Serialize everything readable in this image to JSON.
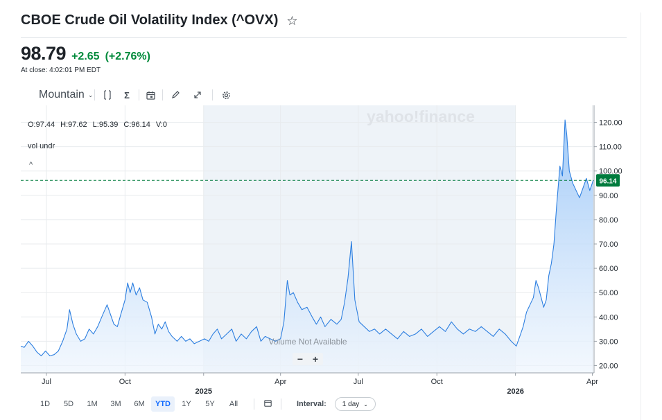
{
  "page": {
    "title": "CBOE Crude Oil Volatility Index (^OVX)",
    "price": "98.79",
    "change": "+2.65",
    "change_pct": "(+2.76%)",
    "close_note": "At close: 4:02:01 PM EDT",
    "star_icon": "star-outline-icon"
  },
  "toolbar": {
    "chart_type": "Mountain",
    "icons": [
      "chevron-down-icon",
      "compare-icon",
      "sigma-icon",
      "calendar-event-icon",
      "pencil-icon",
      "expand-icon",
      "gear-icon"
    ]
  },
  "ohlc": {
    "o": "O:97.44",
    "h": "H:97.62",
    "l": "L:95.39",
    "c": "C:96.14",
    "v": "V:0"
  },
  "indicator_label": "vol undr",
  "volume_note": "Volume Not Available",
  "watermark": "yahoo!finance",
  "zoom": {
    "minus": "−",
    "plus": "+"
  },
  "ranges": [
    "1D",
    "5D",
    "1M",
    "3M",
    "6M",
    "YTD",
    "1Y",
    "5Y",
    "All"
  ],
  "active_range": "YTD",
  "interval": {
    "label": "Interval:",
    "value": "1 day"
  },
  "colors": {
    "line": "#2d7fe0",
    "fill_top": "#9cc7f7",
    "fill_bottom": "#eef5fd",
    "up": "#008a3b",
    "shade": "#eef3f8",
    "price_tag": "#007b3d"
  },
  "chart_data": {
    "type": "area",
    "title": "CBOE Crude Oil Volatility Index (^OVX)",
    "ylim": [
      17,
      127
    ],
    "y_ticks": [
      20,
      30,
      40,
      50,
      60,
      70,
      80,
      90,
      100,
      110,
      120
    ],
    "y_tick_labels": [
      "20.00",
      "30.00",
      "40.00",
      "50.00",
      "60.00",
      "70.00",
      "80.00",
      "90.00",
      "100.00",
      "110.00",
      "120.00"
    ],
    "x_axis": {
      "start": "2024-06-01",
      "end": "2026-04-03",
      "ticks": [
        {
          "date": "2024-07-01",
          "label": "Jul",
          "year": false
        },
        {
          "date": "2024-10-01",
          "label": "Oct",
          "year": false
        },
        {
          "date": "2025-01-01",
          "label": "2025",
          "year": true
        },
        {
          "date": "2025-04-01",
          "label": "Apr",
          "year": false
        },
        {
          "date": "2025-07-01",
          "label": "Jul",
          "year": false
        },
        {
          "date": "2025-10-01",
          "label": "Oct",
          "year": false
        },
        {
          "date": "2026-01-01",
          "label": "2026",
          "year": true
        },
        {
          "date": "2026-04-01",
          "label": "Apr",
          "year": false
        }
      ]
    },
    "highlight_range": [
      "2025-01-01",
      "2026-01-01"
    ],
    "current_value": 96.14,
    "current_label": "96.14",
    "series": [
      {
        "name": "^OVX",
        "points": [
          [
            "2024-06-01",
            28
          ],
          [
            "2024-06-05",
            27.5
          ],
          [
            "2024-06-10",
            30
          ],
          [
            "2024-06-15",
            28
          ],
          [
            "2024-06-20",
            25.5
          ],
          [
            "2024-06-25",
            24
          ],
          [
            "2024-06-30",
            26
          ],
          [
            "2024-07-05",
            24
          ],
          [
            "2024-07-10",
            24.5
          ],
          [
            "2024-07-15",
            26
          ],
          [
            "2024-07-20",
            30
          ],
          [
            "2024-07-25",
            35
          ],
          [
            "2024-07-28",
            43
          ],
          [
            "2024-08-01",
            37
          ],
          [
            "2024-08-05",
            33
          ],
          [
            "2024-08-10",
            30
          ],
          [
            "2024-08-15",
            31
          ],
          [
            "2024-08-20",
            35
          ],
          [
            "2024-08-25",
            33
          ],
          [
            "2024-08-30",
            36
          ],
          [
            "2024-09-05",
            41
          ],
          [
            "2024-09-10",
            45
          ],
          [
            "2024-09-13",
            42
          ],
          [
            "2024-09-18",
            37
          ],
          [
            "2024-09-22",
            36
          ],
          [
            "2024-09-26",
            41
          ],
          [
            "2024-10-01",
            47
          ],
          [
            "2024-10-04",
            54
          ],
          [
            "2024-10-07",
            50
          ],
          [
            "2024-10-10",
            54
          ],
          [
            "2024-10-14",
            49
          ],
          [
            "2024-10-18",
            52
          ],
          [
            "2024-10-22",
            47
          ],
          [
            "2024-10-27",
            46
          ],
          [
            "2024-11-01",
            40
          ],
          [
            "2024-11-05",
            33
          ],
          [
            "2024-11-09",
            37
          ],
          [
            "2024-11-13",
            35
          ],
          [
            "2024-11-17",
            38
          ],
          [
            "2024-11-21",
            34
          ],
          [
            "2024-11-25",
            32
          ],
          [
            "2024-12-01",
            30
          ],
          [
            "2024-12-06",
            32
          ],
          [
            "2024-12-11",
            30
          ],
          [
            "2024-12-16",
            31
          ],
          [
            "2024-12-21",
            29
          ],
          [
            "2024-12-27",
            30
          ],
          [
            "2025-01-02",
            31
          ],
          [
            "2025-01-07",
            30
          ],
          [
            "2025-01-12",
            33
          ],
          [
            "2025-01-17",
            35
          ],
          [
            "2025-01-22",
            31
          ],
          [
            "2025-01-28",
            33
          ],
          [
            "2025-02-03",
            35
          ],
          [
            "2025-02-08",
            30
          ],
          [
            "2025-02-14",
            33
          ],
          [
            "2025-02-20",
            31
          ],
          [
            "2025-02-26",
            34
          ],
          [
            "2025-03-04",
            36
          ],
          [
            "2025-03-09",
            30
          ],
          [
            "2025-03-14",
            32
          ],
          [
            "2025-03-20",
            31
          ],
          [
            "2025-03-26",
            30
          ],
          [
            "2025-04-01",
            31
          ],
          [
            "2025-04-05",
            38
          ],
          [
            "2025-04-09",
            55
          ],
          [
            "2025-04-12",
            49
          ],
          [
            "2025-04-16",
            50
          ],
          [
            "2025-04-21",
            46
          ],
          [
            "2025-04-26",
            43
          ],
          [
            "2025-05-02",
            44
          ],
          [
            "2025-05-08",
            40
          ],
          [
            "2025-05-13",
            37
          ],
          [
            "2025-05-18",
            40
          ],
          [
            "2025-05-23",
            36
          ],
          [
            "2025-05-30",
            39
          ],
          [
            "2025-06-06",
            37
          ],
          [
            "2025-06-11",
            39
          ],
          [
            "2025-06-15",
            46
          ],
          [
            "2025-06-19",
            56
          ],
          [
            "2025-06-23",
            71
          ],
          [
            "2025-06-27",
            47
          ],
          [
            "2025-07-02",
            38
          ],
          [
            "2025-07-08",
            36
          ],
          [
            "2025-07-14",
            34
          ],
          [
            "2025-07-20",
            35
          ],
          [
            "2025-07-26",
            33
          ],
          [
            "2025-08-02",
            35
          ],
          [
            "2025-08-09",
            33
          ],
          [
            "2025-08-16",
            31
          ],
          [
            "2025-08-23",
            34
          ],
          [
            "2025-08-30",
            32
          ],
          [
            "2025-09-06",
            33
          ],
          [
            "2025-09-13",
            35
          ],
          [
            "2025-09-20",
            32
          ],
          [
            "2025-09-27",
            34
          ],
          [
            "2025-10-04",
            36
          ],
          [
            "2025-10-11",
            34
          ],
          [
            "2025-10-18",
            38
          ],
          [
            "2025-10-25",
            35
          ],
          [
            "2025-11-01",
            33
          ],
          [
            "2025-11-08",
            35
          ],
          [
            "2025-11-15",
            34
          ],
          [
            "2025-11-22",
            36
          ],
          [
            "2025-11-29",
            34
          ],
          [
            "2025-12-06",
            32
          ],
          [
            "2025-12-13",
            35
          ],
          [
            "2025-12-20",
            33
          ],
          [
            "2025-12-27",
            30
          ],
          [
            "2026-01-02",
            28
          ],
          [
            "2026-01-06",
            32
          ],
          [
            "2026-01-10",
            36
          ],
          [
            "2026-01-14",
            42
          ],
          [
            "2026-01-18",
            45
          ],
          [
            "2026-01-22",
            48
          ],
          [
            "2026-01-25",
            55
          ],
          [
            "2026-01-28",
            52
          ],
          [
            "2026-01-31",
            48
          ],
          [
            "2026-02-03",
            44
          ],
          [
            "2026-02-06",
            47
          ],
          [
            "2026-02-09",
            57
          ],
          [
            "2026-02-12",
            62
          ],
          [
            "2026-02-15",
            70
          ],
          [
            "2026-02-18",
            85
          ],
          [
            "2026-02-22",
            102
          ],
          [
            "2026-02-25",
            98
          ],
          [
            "2026-02-28",
            121
          ],
          [
            "2026-03-02",
            115
          ],
          [
            "2026-03-05",
            100
          ],
          [
            "2026-03-09",
            95
          ],
          [
            "2026-03-13",
            92
          ],
          [
            "2026-03-17",
            89
          ],
          [
            "2026-03-21",
            93
          ],
          [
            "2026-03-25",
            97
          ],
          [
            "2026-03-29",
            92
          ],
          [
            "2026-04-02",
            96.14
          ]
        ]
      }
    ]
  }
}
